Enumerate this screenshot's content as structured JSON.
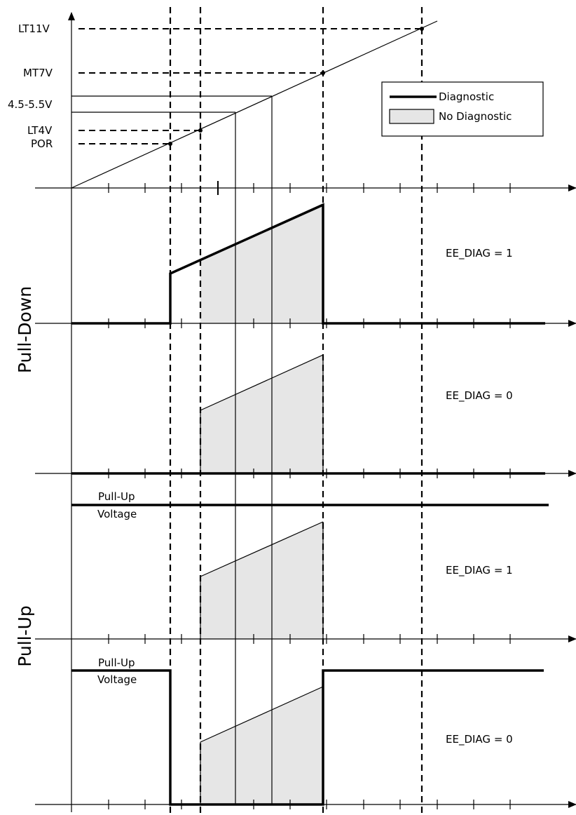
{
  "voltage_labels": {
    "lt11v": "LT11V",
    "mt7v": "MT7V",
    "range": "4.5-5.5V",
    "lt4v": "LT4V",
    "por": "POR"
  },
  "legend": {
    "diagnostic": "Diagnostic",
    "no_diagnostic": "No Diagnostic"
  },
  "sections": {
    "pull_down": "Pull-Down",
    "pull_up": "Pull-Up"
  },
  "panels": {
    "pd_diag1": "EE_DIAG = 1",
    "pd_diag0": "EE_DIAG = 0",
    "pu_diag1": "EE_DIAG = 1",
    "pu_diag0": "EE_DIAG = 0"
  },
  "pull_up_voltage": {
    "line1": "Pull-Up",
    "line2": "Voltage"
  }
}
